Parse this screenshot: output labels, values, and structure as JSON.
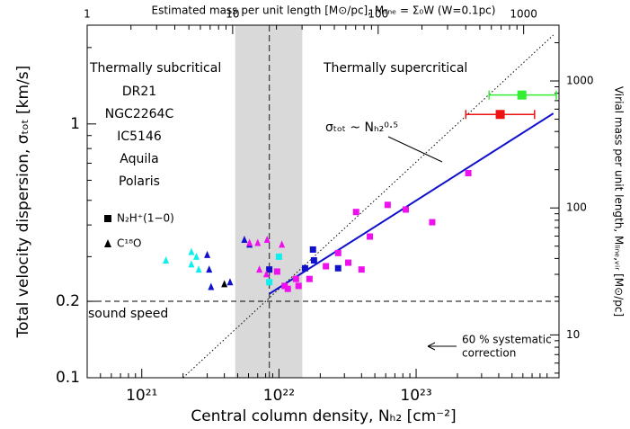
{
  "chart_data": {
    "type": "scatter",
    "title": "Estimated mass per unit length  [M⊙/pc], Mₗᵢₙₑ = Σ₀W (W=0.1pc)",
    "x_label": "Central column density, Nₕ₂ [cm⁻²]",
    "y_label": "Total velocity dispersion, σₜₒₜ [km/s]",
    "y2_label": "Virial mass per unit length, Mₗᵢₙₑ,ᵥᵢᵣ [M⊙/pc]",
    "log_x": true,
    "log_y": true,
    "xlim": [
      4e+20,
      1.1e+24
    ],
    "xticks": [
      {
        "value": 1e+21,
        "label": "10²¹"
      },
      {
        "value": 1e+22,
        "label": "10²²"
      },
      {
        "value": 1e+23,
        "label": "10²³"
      }
    ],
    "ylim": [
      0.1,
      2.45
    ],
    "yticks": [
      0.1,
      0.2,
      1
    ],
    "x2lim": [
      1,
      1750
    ],
    "x2ticks": [
      1,
      10,
      100,
      1000
    ],
    "y2lim": [
      4.6,
      2750
    ],
    "y2ticks": [
      10,
      100,
      1000
    ],
    "series": [
      {
        "name": "DR21",
        "color": "#33ee33",
        "x": [
          5.9e+23
        ],
        "values": [
          1.3
        ],
        "markers": [
          "square"
        ],
        "x_low": [
          3.4e+23
        ],
        "x_high": [
          1.05e+24
        ]
      },
      {
        "name": "NGC2264C",
        "color": "#ee1111",
        "x": [
          4.1e+23
        ],
        "values": [
          1.09
        ],
        "markers": [
          "square"
        ],
        "x_low": [
          2.3e+23
        ],
        "x_high": [
          7.3e+23
        ]
      },
      {
        "name": "IC5146",
        "color": "#1111cc",
        "x": [
          3e+21,
          3.1e+21,
          3.2e+21,
          5.6e+21,
          6.1e+21,
          4.4e+21,
          8.5e+21,
          1.55e+22,
          1.77e+22,
          1.8e+22,
          2.7e+22
        ],
        "values": [
          0.305,
          0.267,
          0.228,
          0.35,
          0.335,
          0.238,
          0.267,
          0.27,
          0.32,
          0.29,
          0.27
        ],
        "markers": [
          "triangle",
          "triangle",
          "triangle",
          "triangle",
          "triangle",
          "triangle",
          "square",
          "square",
          "square",
          "square",
          "square"
        ]
      },
      {
        "name": "Aquila",
        "color": "#ee11ee",
        "x": [
          6.1e+21,
          7e+21,
          8.2e+21,
          1.05e+22,
          7.2e+21,
          8.1e+21,
          9.7e+21,
          1.1e+22,
          1.16e+22,
          1.33e+22,
          1.39e+22,
          1.67e+22,
          2.2e+22,
          2.7e+22,
          3.2e+22,
          4e+22,
          4.6e+22,
          3.65e+22,
          6.2e+22,
          8.4e+22,
          1.31e+23,
          2.4e+23
        ],
        "values": [
          0.34,
          0.34,
          0.35,
          0.335,
          0.267,
          0.256,
          0.262,
          0.23,
          0.224,
          0.245,
          0.23,
          0.245,
          0.275,
          0.31,
          0.284,
          0.267,
          0.36,
          0.45,
          0.48,
          0.46,
          0.41,
          0.64
        ],
        "markers": [
          "triangle",
          "triangle",
          "triangle",
          "triangle",
          "triangle",
          "triangle",
          "square",
          "square",
          "square",
          "square",
          "square",
          "square",
          "square",
          "square",
          "square",
          "square",
          "square",
          "square",
          "square",
          "square",
          "square",
          "square"
        ]
      },
      {
        "name": "Polaris",
        "color": "#11eeee",
        "x": [
          1.5e+21,
          2.3e+21,
          2.3e+21,
          2.5e+21,
          2.6e+21,
          8.5e+21,
          1e+22
        ],
        "values": [
          0.29,
          0.313,
          0.28,
          0.3,
          0.267,
          0.238,
          0.3
        ],
        "markers": [
          "triangle",
          "triangle",
          "triangle",
          "triangle",
          "triangle",
          "square",
          "square"
        ]
      },
      {
        "color": "#000000",
        "x": [
          4e+21
        ],
        "values": [
          0.234
        ],
        "markers": [
          "triangle"
        ]
      }
    ],
    "tracers": [
      {
        "marker": "square",
        "label": "N₂H⁺(1−0)"
      },
      {
        "marker": "triangle",
        "label": "C¹⁸O"
      }
    ],
    "fit": {
      "color": "#1111cc",
      "x": [
        8.5e+21,
        1e+24
      ],
      "values": [
        0.214,
        1.1
      ]
    },
    "relation": {
      "x": [
        2e+21,
        1e+24
      ],
      "values": [
        0.1,
        2.24
      ]
    },
    "sound_speed": 0.2,
    "band": [
      4.8e+21,
      1.48e+22
    ],
    "critical_line": 8.5e+21,
    "annotations": {
      "subcritical": "Thermally subcritical",
      "supercritical": "Thermally supercritical",
      "relation": "σₜₒₜ ~ Nₕ₂⁰·⁵",
      "sound_speed": "sound speed",
      "correction": [
        "60 % systematic",
        "correction"
      ]
    }
  }
}
